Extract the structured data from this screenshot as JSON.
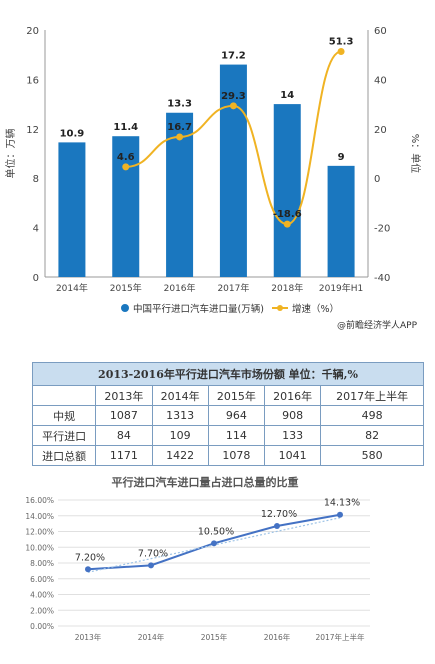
{
  "chart_data": [
    {
      "type": "bar",
      "categories": [
        "2014年",
        "2015年",
        "2016年",
        "2017年",
        "2018年",
        "2019年H1"
      ],
      "series": [
        {
          "name": "中国平行进口汽车进口量(万辆)",
          "type": "bar",
          "axis": "left",
          "values": [
            10.9,
            11.4,
            13.3,
            17.2,
            14,
            9
          ],
          "color": "#1a77bf"
        },
        {
          "name": "增速（%）",
          "type": "line",
          "axis": "right",
          "values": [
            null,
            4.6,
            16.7,
            29.3,
            -18.6,
            51.3
          ],
          "color": "#f0b323"
        }
      ],
      "bar_labels": [
        "10.9",
        "11.4",
        "13.3",
        "17.2",
        "14",
        "9"
      ],
      "line_labels": [
        "",
        "4.6",
        "16.7",
        "29.3",
        "-18.6",
        "51.3"
      ],
      "ylabel": "单位：万辆",
      "ylabel_right": "%：单位",
      "ylim": [
        0,
        20
      ],
      "yticks": [
        "0",
        "4",
        "8",
        "12",
        "16",
        "20"
      ],
      "y2lim": [
        -40,
        60
      ],
      "y2ticks": [
        "-40",
        "-20",
        "0",
        "20",
        "40",
        "60"
      ],
      "legend_position": "bottom",
      "grid": false
    },
    {
      "type": "table",
      "title": "2013-2016年平行进口汽车市场份额   单位：千辆,%",
      "columns": [
        "",
        "2013年",
        "2014年",
        "2015年",
        "2016年",
        "2017年上半年"
      ],
      "rows": [
        [
          "中规",
          "1087",
          "1313",
          "964",
          "908",
          "498"
        ],
        [
          "平行进口",
          "84",
          "109",
          "114",
          "133",
          "82"
        ],
        [
          "进口总额",
          "1171",
          "1422",
          "1078",
          "1041",
          "580"
        ]
      ]
    },
    {
      "type": "line",
      "title": "平行进口汽车进口量占进口总量的比重",
      "categories": [
        "2013年",
        "2014年",
        "2015年",
        "2016年",
        "2017年上半年"
      ],
      "series": [
        {
          "values": [
            7.2,
            7.7,
            10.5,
            12.7,
            14.13
          ],
          "color": "#4472c4"
        }
      ],
      "labels": [
        "7.20%",
        "7.70%",
        "10.50%",
        "12.70%",
        "14.13%"
      ],
      "ylim": [
        0,
        16
      ],
      "yticks": [
        "0.00%",
        "2.00%",
        "4.00%",
        "6.00%",
        "8.00%",
        "10.00%",
        "12.00%",
        "14.00%",
        "16.00%"
      ],
      "grid": true
    }
  ],
  "source_text": "@前瞻经济学人APP"
}
